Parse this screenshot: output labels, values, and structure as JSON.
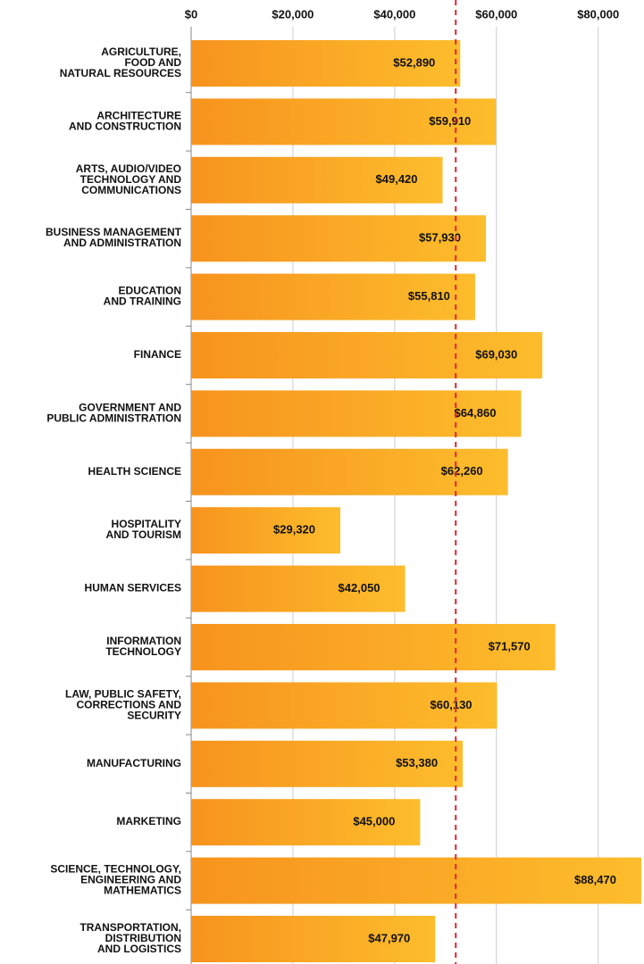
{
  "chart_data": {
    "type": "barh",
    "categories": [
      [
        "AGRICULTURE,",
        "FOOD AND",
        "NATURAL RESOURCES"
      ],
      [
        "ARCHITECTURE",
        "AND CONSTRUCTION"
      ],
      [
        "ARTS, AUDIO/VIDEO",
        "TECHNOLOGY AND",
        "COMMUNICATIONS"
      ],
      [
        "BUSINESS MANAGEMENT",
        "AND ADMINISTRATION"
      ],
      [
        "EDUCATION",
        "AND TRAINING"
      ],
      [
        "FINANCE"
      ],
      [
        "GOVERNMENT AND",
        "PUBLIC ADMINISTRATION"
      ],
      [
        "HEALTH SCIENCE"
      ],
      [
        "HOSPITALITY",
        "AND TOURISM"
      ],
      [
        "HUMAN SERVICES"
      ],
      [
        "INFORMATION",
        "TECHNOLOGY"
      ],
      [
        "LAW, PUBLIC SAFETY,",
        "CORRECTIONS AND",
        "SECURITY"
      ],
      [
        "MANUFACTURING"
      ],
      [
        "MARKETING"
      ],
      [
        "SCIENCE, TECHNOLOGY,",
        "ENGINEERING AND",
        "MATHEMATICS"
      ],
      [
        "TRANSPORTATION,",
        "DISTRIBUTION",
        "AND LOGISTICS"
      ]
    ],
    "values": [
      52890,
      59910,
      49420,
      57930,
      55810,
      69030,
      64860,
      62260,
      29320,
      42050,
      71570,
      60130,
      53380,
      45000,
      88470,
      47970
    ],
    "value_labels": [
      "$52,890",
      "$59,910",
      "$49,420",
      "$57,930",
      "$55,810",
      "$69,030",
      "$64,860",
      "$62,260",
      "$29,320",
      "$42,050",
      "$71,570",
      "$60,130",
      "$53,380",
      "$45,000",
      "$88,470",
      "$47,970"
    ],
    "gradient": [
      "#f7931e",
      "#fdbd2c"
    ],
    "xlim": [
      0,
      89000
    ],
    "xticks": [
      {
        "value": 0,
        "label": "$0"
      },
      {
        "value": 20000,
        "label": "$20,000"
      },
      {
        "value": 40000,
        "label": "$40,000"
      },
      {
        "value": 60000,
        "label": "$60,000"
      },
      {
        "value": 80000,
        "label": "$80,000"
      }
    ],
    "grid": true,
    "reference_line": 52000,
    "reference_color": "#e3262d"
  }
}
